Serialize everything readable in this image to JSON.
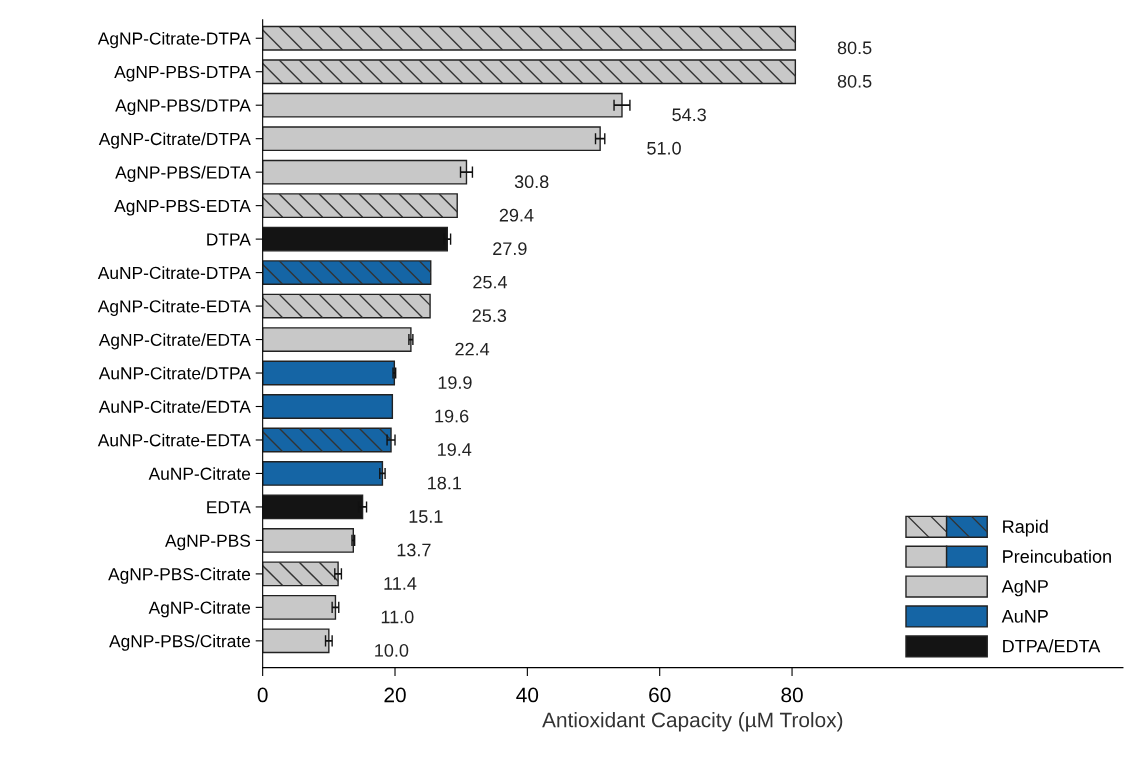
{
  "chart_data": {
    "type": "bar",
    "orientation": "horizontal",
    "xlabel": "Antioxidant Capacity (µM Trolox)",
    "categories": [
      "AgNP-Citrate-DTPA",
      "AgNP-PBS-DTPA",
      "AgNP-PBS/DTPA",
      "AgNP-Citrate/DTPA",
      "AgNP-PBS/EDTA",
      "AgNP-PBS-EDTA",
      "DTPA",
      "AuNP-Citrate-DTPA",
      "AgNP-Citrate-EDTA",
      "AgNP-Citrate/EDTA",
      "AuNP-Citrate/DTPA",
      "AuNP-Citrate/EDTA",
      "AuNP-Citrate-EDTA",
      "AuNP-Citrate",
      "EDTA",
      "AgNP-PBS",
      "AgNP-PBS-Citrate",
      "AgNP-Citrate",
      "AgNP-PBS/Citrate"
    ],
    "series": [
      {
        "name": "Rapid",
        "values": [
          80.5,
          80.5,
          null,
          null,
          null,
          29.4,
          null,
          25.4,
          25.3,
          null,
          null,
          null,
          19.4,
          null,
          null,
          null,
          11.4,
          null,
          null
        ],
        "colors": [
          "#c8c8c8",
          "#c8c8c8",
          null,
          null,
          null,
          "#c8c8c8",
          null,
          "#1565a5",
          "#c8c8c8",
          null,
          null,
          null,
          "#1565a5",
          null,
          null,
          null,
          "#c8c8c8",
          null,
          null
        ],
        "errors": [
          null,
          null,
          null,
          null,
          null,
          null,
          null,
          null,
          null,
          null,
          null,
          null,
          0.6,
          null,
          null,
          null,
          0.5,
          null,
          null
        ],
        "value_labels": [
          "80.5",
          "80.5",
          null,
          null,
          null,
          "29.4",
          null,
          "25.4",
          "25.3",
          null,
          null,
          null,
          "19.4",
          null,
          null,
          null,
          "11.4",
          null,
          null
        ]
      },
      {
        "name": "Preincubation",
        "values": [
          null,
          null,
          54.3,
          51.0,
          30.8,
          null,
          null,
          null,
          null,
          22.4,
          19.9,
          19.6,
          null,
          null,
          null,
          null,
          null,
          null,
          10.0
        ],
        "colors": [
          null,
          null,
          "#c8c8c8",
          "#c8c8c8",
          "#c8c8c8",
          null,
          null,
          null,
          null,
          "#c8c8c8",
          "#1565a5",
          "#1565a5",
          null,
          null,
          null,
          null,
          null,
          null,
          "#c8c8c8"
        ],
        "errors": [
          null,
          null,
          1.2,
          0.7,
          0.9,
          null,
          null,
          null,
          null,
          0.3,
          0.2,
          null,
          null,
          null,
          null,
          null,
          null,
          null,
          0.5
        ],
        "value_labels": [
          null,
          null,
          "54.3",
          "51.0",
          "30.8",
          null,
          null,
          null,
          null,
          "22.4",
          "19.9",
          "19.6",
          null,
          null,
          null,
          null,
          null,
          null,
          "10.0"
        ]
      },
      {
        "name": "AgNP",
        "color": "#c8c8c8",
        "values": [
          null,
          null,
          null,
          null,
          null,
          null,
          null,
          null,
          null,
          null,
          null,
          null,
          null,
          null,
          null,
          13.7,
          null,
          11.0,
          null
        ],
        "errors": [
          null,
          null,
          null,
          null,
          null,
          null,
          null,
          null,
          null,
          null,
          null,
          null,
          null,
          null,
          null,
          0.2,
          null,
          0.5,
          null
        ],
        "value_labels": [
          null,
          null,
          null,
          null,
          null,
          null,
          null,
          null,
          null,
          null,
          null,
          null,
          null,
          null,
          null,
          "13.7",
          null,
          "11.0",
          null
        ]
      },
      {
        "name": "AuNP",
        "color": "#1565a5",
        "values": [
          null,
          null,
          null,
          null,
          null,
          null,
          null,
          null,
          null,
          null,
          null,
          null,
          null,
          18.1,
          null,
          null,
          null,
          null,
          null
        ],
        "errors": [
          null,
          null,
          null,
          null,
          null,
          null,
          null,
          null,
          null,
          null,
          null,
          null,
          null,
          0.4,
          null,
          null,
          null,
          null,
          null
        ],
        "value_labels": [
          null,
          null,
          null,
          null,
          null,
          null,
          null,
          null,
          null,
          null,
          null,
          null,
          null,
          "18.1",
          null,
          null,
          null,
          null,
          null
        ]
      },
      {
        "name": "DTPA/EDTA",
        "color": "#141414",
        "values": [
          null,
          null,
          null,
          null,
          null,
          null,
          27.9,
          null,
          null,
          null,
          null,
          null,
          null,
          null,
          15.1,
          null,
          null,
          null,
          null
        ],
        "errors": [
          null,
          null,
          null,
          null,
          null,
          null,
          0.5,
          null,
          null,
          null,
          null,
          null,
          null,
          null,
          0.6,
          null,
          null,
          null,
          null
        ],
        "value_labels": [
          null,
          null,
          null,
          null,
          null,
          null,
          "27.9",
          null,
          null,
          null,
          null,
          null,
          null,
          null,
          "15.1",
          null,
          null,
          null,
          null
        ]
      }
    ],
    "xlim": [
      0,
      130
    ],
    "xticks": [
      0,
      20,
      40,
      60,
      80
    ],
    "legend": "bottom right",
    "grid": false
  }
}
